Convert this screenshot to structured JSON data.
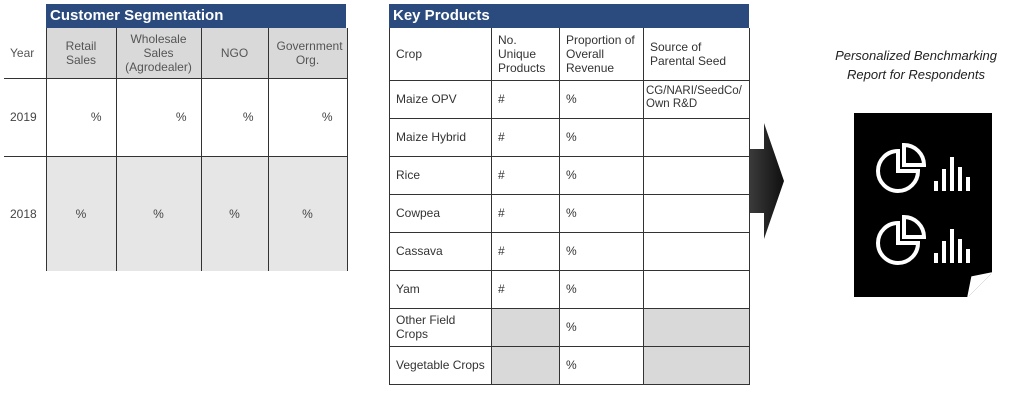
{
  "customer_segmentation": {
    "title": "Customer Segmentation",
    "columns": [
      "Year",
      "Retail Sales",
      "Wholesale Sales (Agrodealer)",
      "NGO",
      "Government Org."
    ],
    "rows": [
      {
        "year": "2019",
        "values": [
          "%",
          "%",
          "%",
          "%"
        ]
      },
      {
        "year": "2018",
        "values": [
          "%",
          "%",
          "%",
          "%"
        ]
      }
    ]
  },
  "key_products": {
    "title": "Key Products",
    "columns": [
      "Crop",
      "No. Unique Products",
      "Proportion of Overall Revenue",
      "Source of Parental Seed"
    ],
    "rows": [
      {
        "crop": "Maize OPV",
        "products": "#",
        "revenue": "%",
        "source": "CG/NARI/SeedCo/ Own R&D"
      },
      {
        "crop": "Maize Hybrid",
        "products": "#",
        "revenue": "%",
        "source": ""
      },
      {
        "crop": "Rice",
        "products": "#",
        "revenue": "%",
        "source": ""
      },
      {
        "crop": "Cowpea",
        "products": "#",
        "revenue": "%",
        "source": ""
      },
      {
        "crop": "Cassava",
        "products": "#",
        "revenue": "%",
        "source": ""
      },
      {
        "crop": "Yam",
        "products": "#",
        "revenue": "%",
        "source": ""
      },
      {
        "crop": "Other Field Crops",
        "products": "",
        "revenue": "%",
        "source": ""
      },
      {
        "crop": "Vegetable Crops",
        "products": "",
        "revenue": "%",
        "source": ""
      }
    ]
  },
  "report": {
    "title_line1": "Personalized Benchmarking",
    "title_line2": "Report for Respondents",
    "icons": [
      "pie-chart-icon",
      "bar-chart-icon"
    ]
  },
  "colors": {
    "header_bg": "#2b4a7d",
    "shade": "#d9d9d9",
    "doc": "#000000"
  }
}
